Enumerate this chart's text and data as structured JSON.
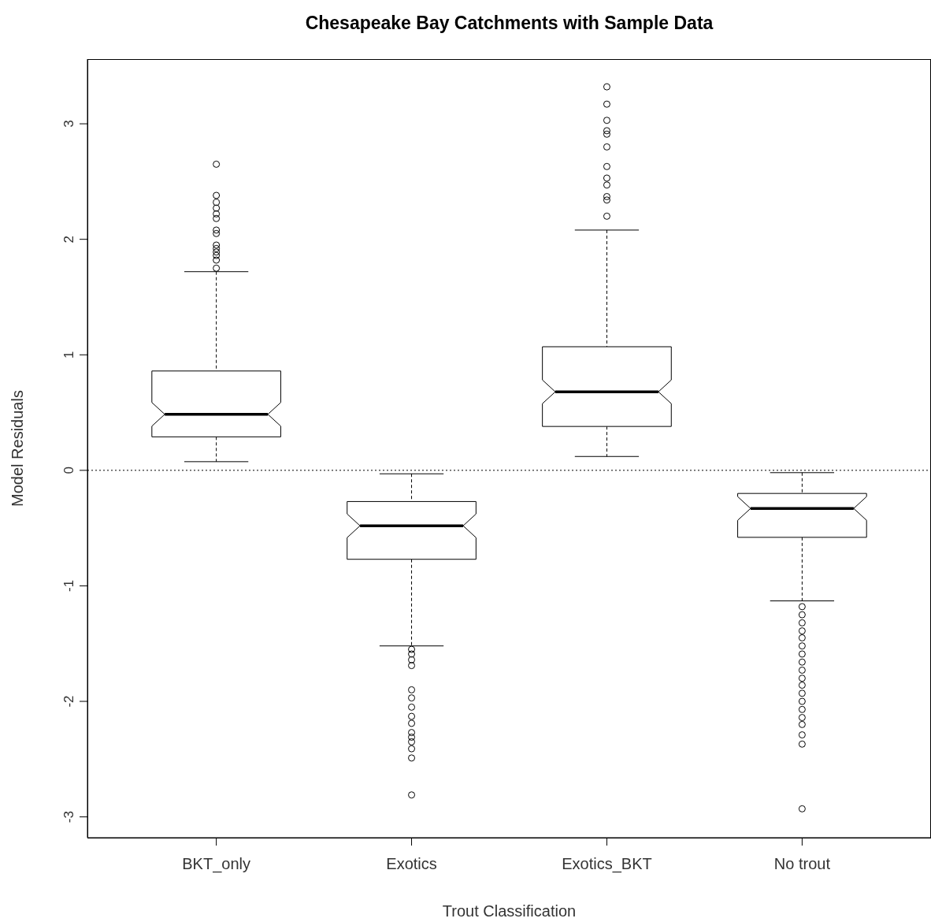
{
  "chart_data": {
    "type": "box",
    "title": "Chesapeake Bay Catchments with Sample Data",
    "xlabel": "Trout Classification",
    "ylabel": "Model Residuals",
    "categories": [
      "BKT_only",
      "Exotics",
      "Exotics_BKT",
      "No trout"
    ],
    "boxes": [
      {
        "low": 0.075,
        "q1": 0.29,
        "median": 0.485,
        "q3": 0.86,
        "high": 1.72,
        "outliers": [
          2.65,
          2.38,
          2.32,
          2.27,
          2.22,
          2.18,
          2.08,
          2.05,
          1.95,
          1.92,
          1.89,
          1.86,
          1.82,
          1.75
        ]
      },
      {
        "low": -1.52,
        "q1": -0.77,
        "median": -0.48,
        "q3": -0.27,
        "high": -0.03,
        "outliers": [
          -2.81,
          -2.49,
          -2.41,
          -2.35,
          -2.31,
          -2.27,
          -2.19,
          -2.13,
          -2.05,
          -1.97,
          -1.9,
          -1.69,
          -1.64,
          -1.59,
          -1.55
        ]
      },
      {
        "low": 0.12,
        "q1": 0.38,
        "median": 0.68,
        "q3": 1.07,
        "high": 2.08,
        "outliers": [
          3.32,
          3.17,
          3.03,
          2.94,
          2.91,
          2.8,
          2.63,
          2.53,
          2.47,
          2.37,
          2.34,
          2.2
        ]
      },
      {
        "low": -1.13,
        "q1": -0.58,
        "median": -0.33,
        "q3": -0.2,
        "high": -0.02,
        "outliers": [
          -2.93,
          -2.37,
          -2.29,
          -2.2,
          -2.14,
          -2.07,
          -2,
          -1.93,
          -1.86,
          -1.8,
          -1.73,
          -1.66,
          -1.59,
          -1.52,
          -1.45,
          -1.39,
          -1.32,
          -1.25,
          -1.18
        ]
      }
    ],
    "ylim": [
      -3.18,
      3.56
    ],
    "yticks": [
      -3,
      -2,
      -1,
      0,
      1,
      2,
      3
    ],
    "marker": "circle",
    "ref_lines": [
      {
        "axis": "y",
        "value": 0,
        "line_style": "dotted"
      }
    ]
  }
}
